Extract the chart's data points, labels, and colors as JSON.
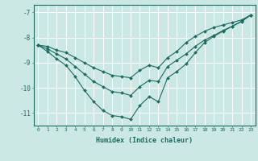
{
  "xlabel": "Humidex (Indice chaleur)",
  "bg_color": "#cce8e4",
  "grid_color": "#ffffff",
  "line_color": "#1a6b60",
  "xlim": [
    -0.5,
    23.5
  ],
  "ylim": [
    -11.5,
    -6.7
  ],
  "xticks": [
    0,
    1,
    2,
    3,
    4,
    5,
    6,
    7,
    8,
    9,
    10,
    11,
    12,
    13,
    14,
    15,
    16,
    17,
    18,
    19,
    20,
    21,
    22,
    23
  ],
  "yticks": [
    -7,
    -8,
    -9,
    -10,
    -11
  ],
  "series": {
    "min": [
      -8.3,
      -8.55,
      -8.85,
      -9.1,
      -9.55,
      -10.1,
      -10.55,
      -10.9,
      -11.1,
      -11.15,
      -11.25,
      -10.7,
      -10.35,
      -10.55,
      -9.6,
      -9.35,
      -9.05,
      -8.6,
      -8.2,
      -7.95,
      -7.75,
      -7.55,
      -7.35,
      -7.1
    ],
    "mean": [
      -8.3,
      -8.45,
      -8.65,
      -8.85,
      -9.15,
      -9.45,
      -9.75,
      -9.95,
      -10.15,
      -10.2,
      -10.3,
      -9.95,
      -9.7,
      -9.75,
      -9.15,
      -8.9,
      -8.65,
      -8.35,
      -8.1,
      -7.92,
      -7.72,
      -7.55,
      -7.37,
      -7.1
    ],
    "max": [
      -8.3,
      -8.35,
      -8.5,
      -8.6,
      -8.8,
      -9.0,
      -9.2,
      -9.35,
      -9.5,
      -9.55,
      -9.6,
      -9.3,
      -9.1,
      -9.2,
      -8.8,
      -8.55,
      -8.2,
      -7.95,
      -7.75,
      -7.6,
      -7.5,
      -7.4,
      -7.3,
      -7.1
    ]
  }
}
